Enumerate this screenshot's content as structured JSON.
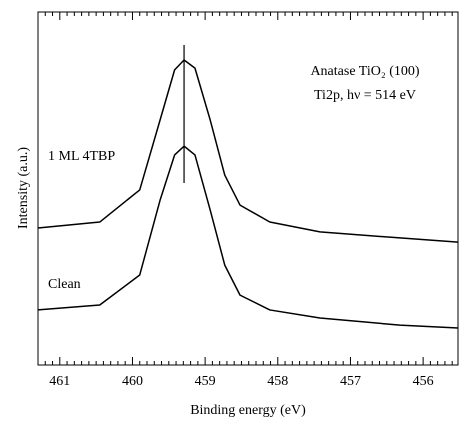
{
  "chart_data": {
    "type": "line",
    "xlabel": "Binding energy (eV)",
    "ylabel": "Intensity (a.u.)",
    "annotations": [
      "Anatase TiO₂ (100)",
      "Ti2p, hν = 514 eV"
    ],
    "x": [
      461.3,
      460.45,
      459.9,
      459.62,
      459.42,
      459.29,
      459.14,
      458.93,
      458.73,
      458.52,
      458.11,
      457.42,
      456.32,
      455.52
    ],
    "series": [
      {
        "name": "1 ML 4TBP",
        "color": "#000000",
        "values": [
          38.8,
          40.5,
          49.6,
          69.4,
          83.6,
          86.4,
          84.1,
          69.4,
          53.8,
          45.3,
          40.5,
          37.7,
          36.0,
          34.8
        ]
      },
      {
        "name": "Clean",
        "color": "#000000",
        "values": [
          15.6,
          17.0,
          25.5,
          46.7,
          59.5,
          62.0,
          59.5,
          43.9,
          28.3,
          19.8,
          15.6,
          13.3,
          11.3,
          10.5
        ]
      }
    ],
    "vline": 459.29,
    "xlim": [
      461.3,
      455.52
    ],
    "ylim": [
      0,
      100
    ],
    "xticks": [
      461,
      460,
      459,
      458,
      457,
      456
    ],
    "xminorticks": [
      461.2,
      461.1,
      460.9,
      460.8,
      460.7,
      460.6,
      460.5,
      460.4,
      460.3,
      460.2,
      460.1,
      459.9,
      459.8,
      459.7,
      459.6,
      459.5,
      459.4,
      459.3,
      459.2,
      459.1,
      458.9,
      458.8,
      458.7,
      458.6,
      458.5,
      458.4,
      458.3,
      458.2,
      458.1,
      457.9,
      457.8,
      457.7,
      457.6,
      457.5,
      457.4,
      457.3,
      457.2,
      457.1,
      456.9,
      456.8,
      456.7,
      456.6,
      456.5,
      456.4,
      456.3,
      456.2,
      456.1,
      455.9,
      455.8,
      455.7,
      455.6
    ]
  }
}
